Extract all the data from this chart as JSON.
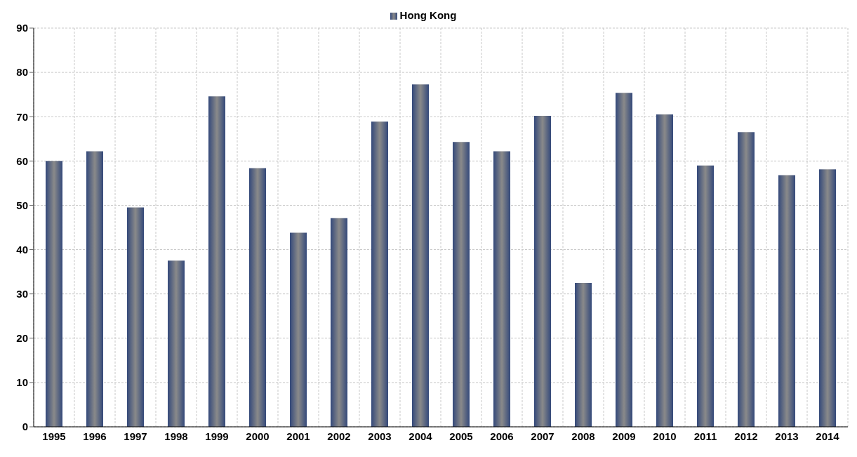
{
  "chart_data": {
    "type": "bar",
    "categories": [
      "1995",
      "1996",
      "1997",
      "1998",
      "1999",
      "2000",
      "2001",
      "2002",
      "2003",
      "2004",
      "2005",
      "2006",
      "2007",
      "2008",
      "2009",
      "2010",
      "2011",
      "2012",
      "2013",
      "2014"
    ],
    "series": [
      {
        "name": "Hong Kong",
        "color": "#34497a",
        "values": [
          60.0,
          62.2,
          49.5,
          37.5,
          74.6,
          58.4,
          43.8,
          47.1,
          68.9,
          77.3,
          64.3,
          62.2,
          70.2,
          32.5,
          75.4,
          70.5,
          59.0,
          66.5,
          56.8,
          58.1
        ]
      }
    ],
    "ylim": [
      0,
      90
    ],
    "yticks": [
      0,
      10,
      20,
      30,
      40,
      50,
      60,
      70,
      80,
      90
    ],
    "grid": true,
    "legend": "top"
  }
}
